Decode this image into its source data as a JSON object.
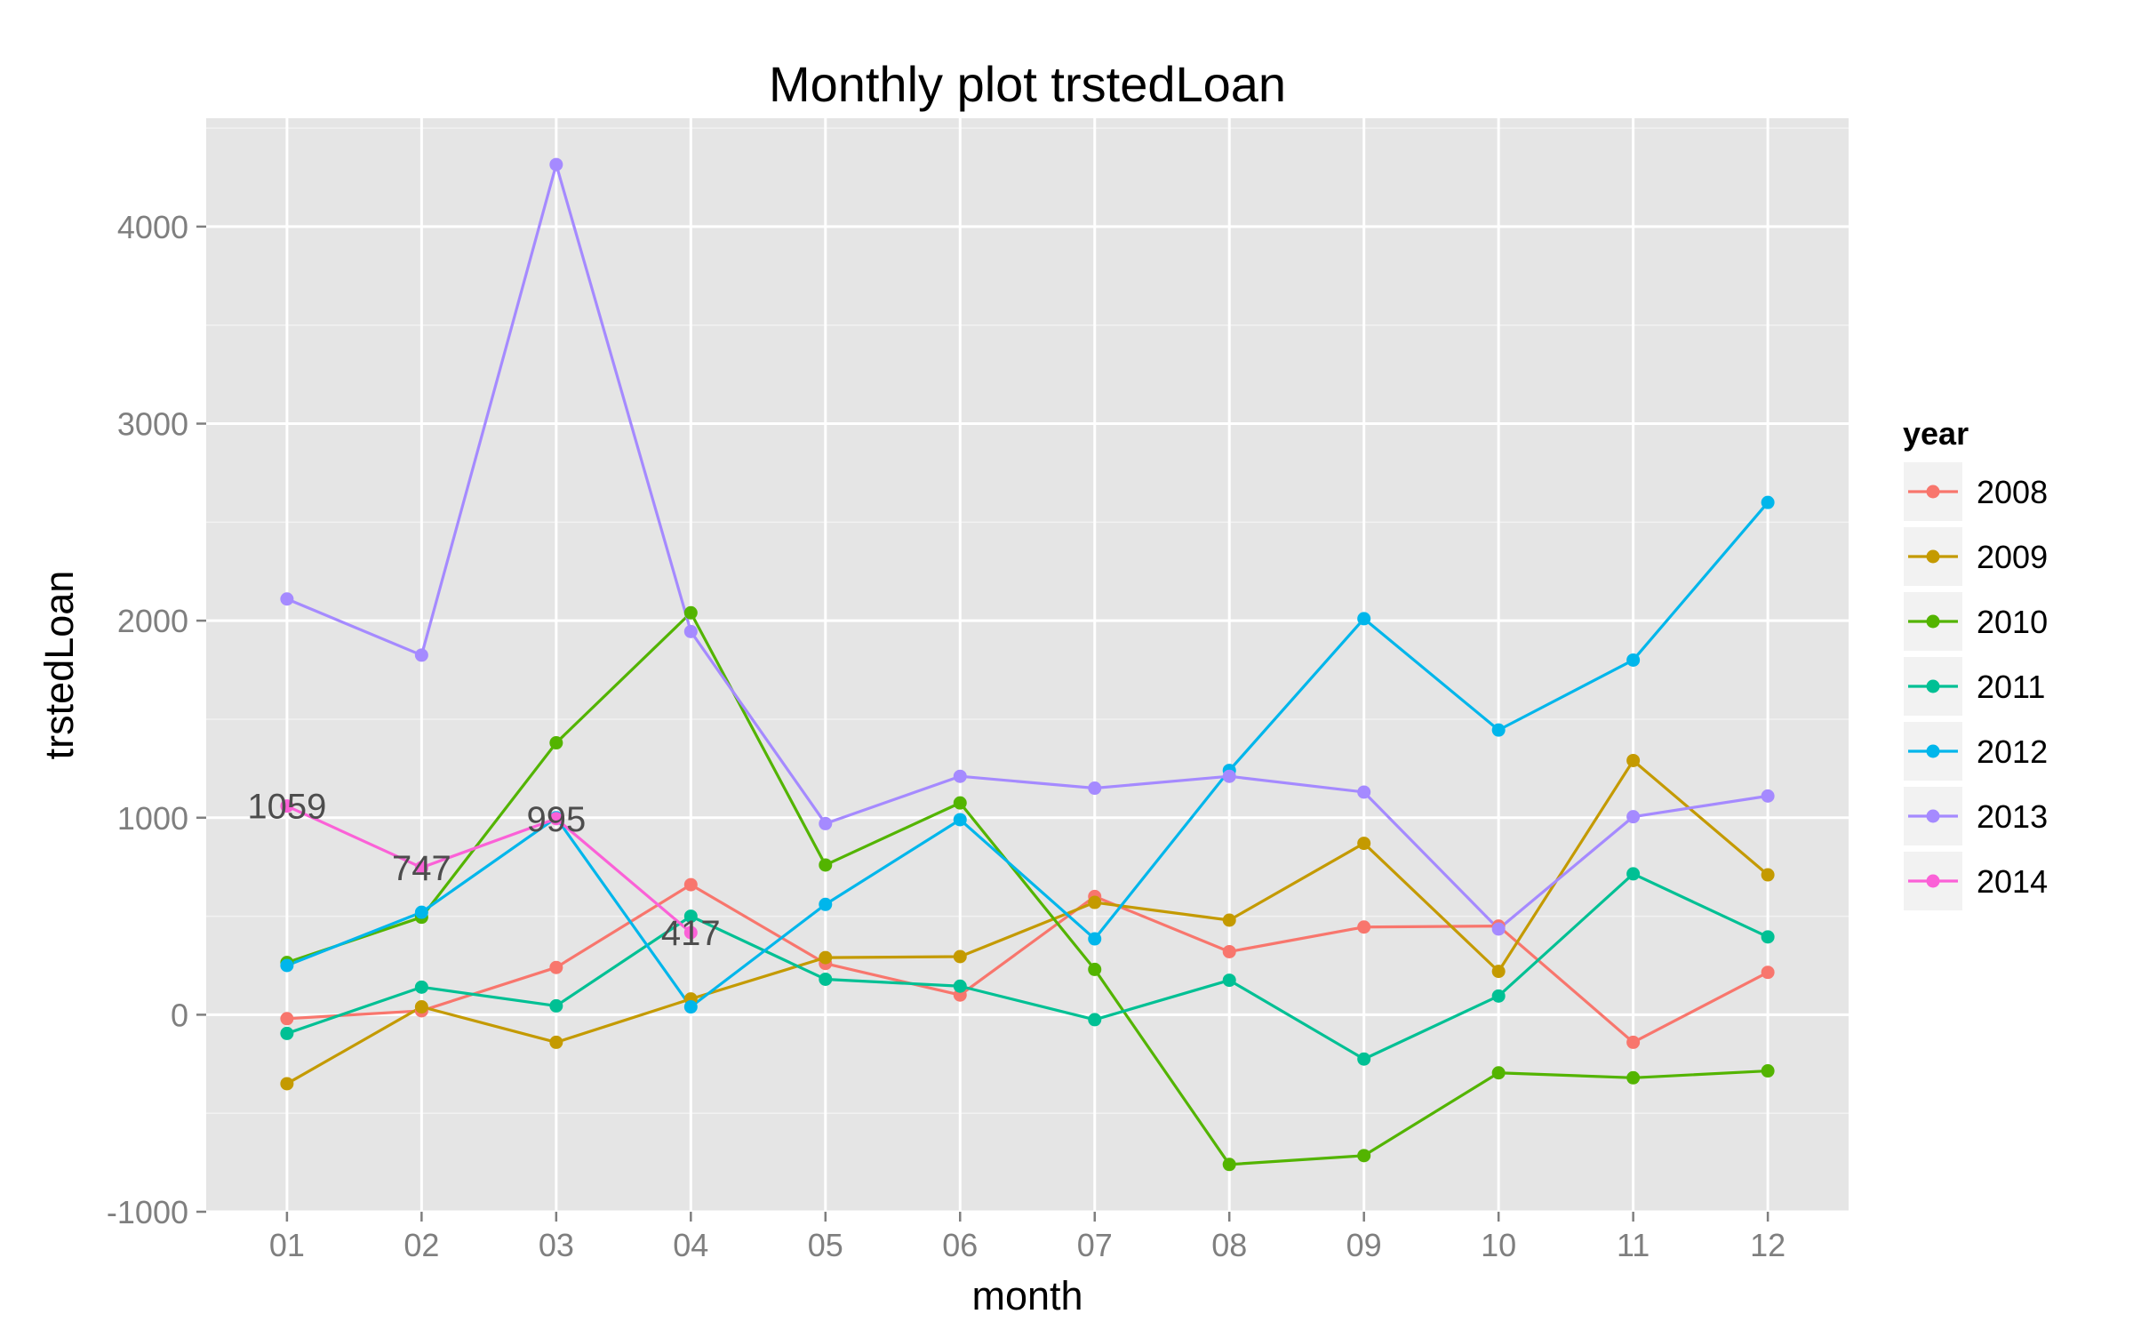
{
  "chart_data": {
    "type": "line",
    "title": "Monthly plot trstedLoan",
    "xlabel": "month",
    "ylabel": "trstedLoan",
    "categories": [
      "01",
      "02",
      "03",
      "04",
      "05",
      "06",
      "07",
      "08",
      "09",
      "10",
      "11",
      "12"
    ],
    "ylim": [
      -1000,
      4550
    ],
    "yticks": [
      -1000,
      0,
      1000,
      2000,
      3000,
      4000
    ],
    "ytick_labels": [
      "-1000",
      "0",
      "1000",
      "2000",
      "3000",
      "4000"
    ],
    "grid": true,
    "legend": {
      "title": "year",
      "position": "right"
    },
    "series": [
      {
        "name": "2008",
        "color": "#F8766D",
        "values": [
          -20,
          20,
          240,
          660,
          260,
          100,
          600,
          320,
          445,
          450,
          -140,
          215
        ]
      },
      {
        "name": "2009",
        "color": "#C49A00",
        "values": [
          -350,
          40,
          -140,
          80,
          290,
          295,
          570,
          480,
          870,
          220,
          1290,
          710
        ]
      },
      {
        "name": "2010",
        "color": "#53B400",
        "values": [
          265,
          495,
          1380,
          2040,
          760,
          1075,
          230,
          -760,
          -715,
          -295,
          -320,
          -285
        ]
      },
      {
        "name": "2011",
        "color": "#00C094",
        "values": [
          -95,
          140,
          45,
          500,
          180,
          145,
          -25,
          175,
          -225,
          95,
          715,
          395
        ]
      },
      {
        "name": "2012",
        "color": "#00B6EB",
        "values": [
          250,
          520,
          1000,
          40,
          560,
          990,
          385,
          1240,
          2010,
          1445,
          1800,
          2600
        ]
      },
      {
        "name": "2013",
        "color": "#A58AFF",
        "values": [
          2110,
          1825,
          4315,
          1945,
          970,
          1210,
          1150,
          1210,
          1130,
          435,
          1005,
          1110
        ]
      },
      {
        "name": "2014",
        "color": "#FB61D7",
        "values": [
          1059,
          747,
          995,
          417,
          null,
          null,
          null,
          null,
          null,
          null,
          null,
          null
        ]
      }
    ],
    "annotations": [
      {
        "text": "1059",
        "x": "01",
        "y": 1059
      },
      {
        "text": "747",
        "x": "02",
        "y": 747
      },
      {
        "text": "995",
        "x": "03",
        "y": 995
      },
      {
        "text": "417",
        "x": "04",
        "y": 417
      }
    ]
  }
}
